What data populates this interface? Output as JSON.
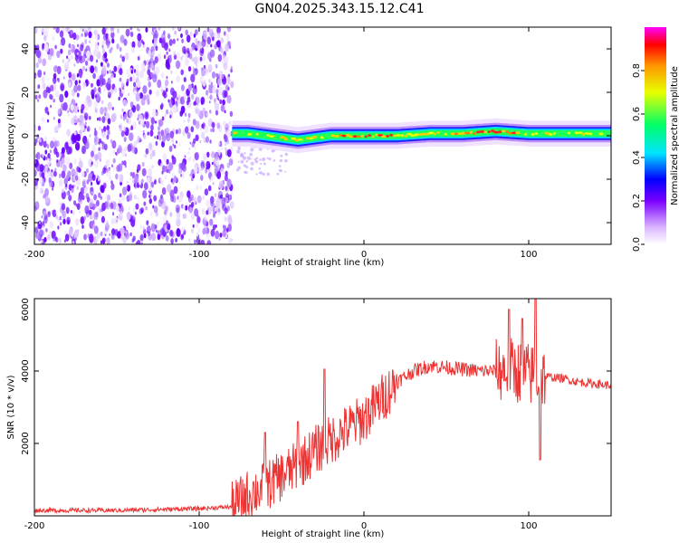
{
  "title": "GN04.2025.343.15.12.C41",
  "chart_data": [
    {
      "type": "heatmap",
      "xlabel": "Height of straight line (km)",
      "ylabel": "Frequency (Hz)",
      "xlim": [
        -200,
        150
      ],
      "ylim": [
        -50,
        50
      ],
      "xticks": [
        "-200",
        "-100",
        "0",
        "100"
      ],
      "yticks": [
        "40",
        "20",
        "0",
        "-20",
        "-40"
      ],
      "colorbar": {
        "label": "Normalized spectral amplitude",
        "range": [
          0,
          1
        ],
        "ticks": [
          "0.0",
          "0.2",
          "0.4",
          "0.6",
          "0.8"
        ]
      },
      "noise_region_km": [
        -200,
        -80
      ],
      "ridge": {
        "x": [
          -80,
          -70,
          -60,
          -50,
          -40,
          -30,
          -20,
          -10,
          0,
          10,
          20,
          40,
          60,
          80,
          100,
          120,
          150
        ],
        "y": [
          1,
          1,
          0,
          -1,
          -2,
          -1,
          0,
          0,
          0,
          0,
          0,
          1,
          1,
          2,
          1,
          1,
          1
        ]
      }
    },
    {
      "type": "line",
      "xlabel": "Height of straight line (km)",
      "ylabel": "SNR (10 * v/v)",
      "xlim": [
        -200,
        150
      ],
      "ylim": [
        0,
        6000
      ],
      "xticks": [
        "-200",
        "-100",
        "0",
        "100"
      ],
      "yticks": [
        "6000",
        "4000",
        "2000"
      ],
      "color": "#ee3333",
      "envelope": {
        "x": [
          -200,
          -150,
          -100,
          -80,
          -70,
          -60,
          -50,
          -40,
          -30,
          -20,
          -10,
          0,
          10,
          20,
          30,
          40,
          50,
          60,
          70,
          80,
          90,
          100,
          110,
          120,
          130,
          150
        ],
        "y": [
          150,
          150,
          200,
          250,
          600,
          800,
          1100,
          1400,
          1800,
          2100,
          2400,
          2700,
          3200,
          3700,
          4000,
          4150,
          4100,
          4050,
          4000,
          4000,
          4050,
          3900,
          3850,
          3800,
          3700,
          3600
        ]
      },
      "spikes": [
        {
          "x": -60,
          "y": 2300
        },
        {
          "x": -40,
          "y": 2600
        },
        {
          "x": -24,
          "y": 4050
        },
        {
          "x": 88,
          "y": 5700
        },
        {
          "x": 96,
          "y": 5450
        },
        {
          "x": 104,
          "y": 6000
        },
        {
          "x": 107,
          "y": 1550
        }
      ]
    }
  ]
}
